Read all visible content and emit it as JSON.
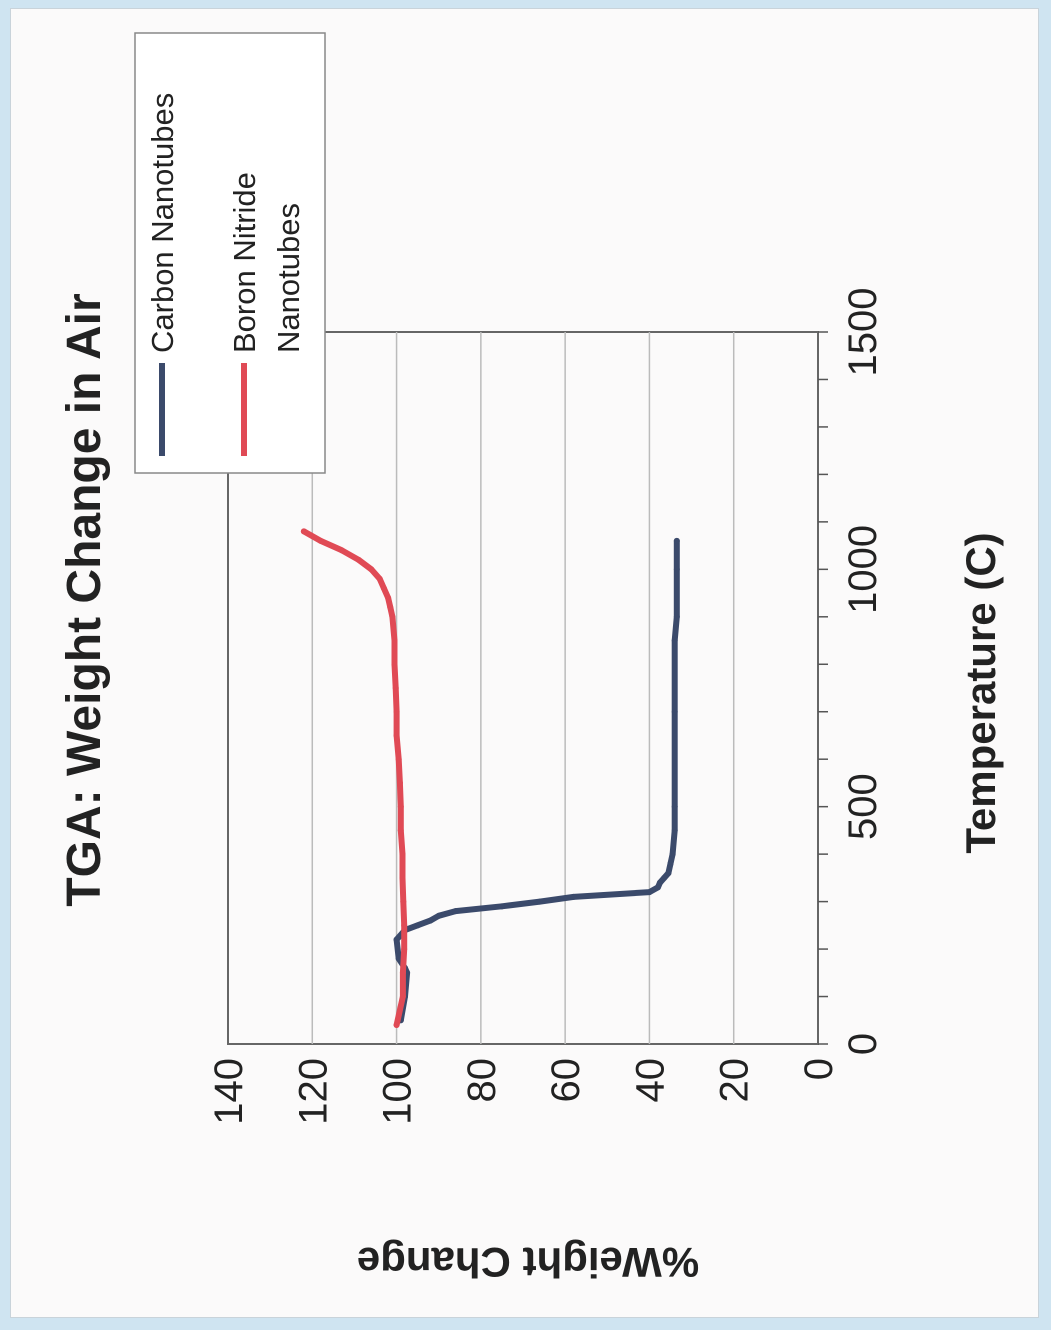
{
  "chart_data": {
    "type": "line",
    "title": "TGA: Weight Change in Air",
    "xlabel": "Temperature (C)",
    "ylabel": "%Weight Change",
    "xlim": [
      0,
      1500
    ],
    "ylim": [
      0,
      140
    ],
    "x_ticks": [
      "0",
      "500",
      "1000",
      "1500"
    ],
    "y_ticks": [
      "0",
      "20",
      "40",
      "60",
      "80",
      "100",
      "120",
      "140"
    ],
    "grid": "horizontal",
    "legend_position": "top-right",
    "rotation": "chart rotated 90 degrees counter-clockwise on page",
    "series": [
      {
        "name": "Carbon Nanotubes",
        "color": "#3b4a6b",
        "x": [
          50,
          100,
          150,
          160,
          180,
          220,
          240,
          250,
          260,
          270,
          280,
          290,
          300,
          310,
          320,
          330,
          340,
          350,
          360,
          380,
          400,
          450,
          500,
          700,
          850,
          900,
          1000,
          1060
        ],
        "y": [
          99,
          98,
          97.5,
          98,
          99.5,
          100,
          98,
          95,
          92,
          90,
          86,
          75,
          66,
          58,
          40,
          38,
          37.5,
          36.5,
          35.5,
          35,
          34.5,
          34,
          34,
          34,
          34,
          33.5,
          33.5,
          33.5
        ]
      },
      {
        "name": "Boron Nitride Nanotubes",
        "color": "#e04a55",
        "x": [
          40,
          100,
          150,
          200,
          250,
          300,
          350,
          400,
          450,
          500,
          550,
          600,
          650,
          700,
          750,
          800,
          850,
          900,
          920,
          940,
          960,
          980,
          1000,
          1020,
          1040,
          1060,
          1080
        ],
        "y": [
          100,
          98.5,
          98.5,
          98.2,
          98.2,
          98.4,
          98.6,
          98.6,
          99,
          99,
          99.2,
          99.5,
          100,
          100,
          100.2,
          100.5,
          100.5,
          101,
          101.5,
          102,
          103,
          104,
          106,
          109,
          113,
          118,
          122
        ]
      }
    ]
  }
}
